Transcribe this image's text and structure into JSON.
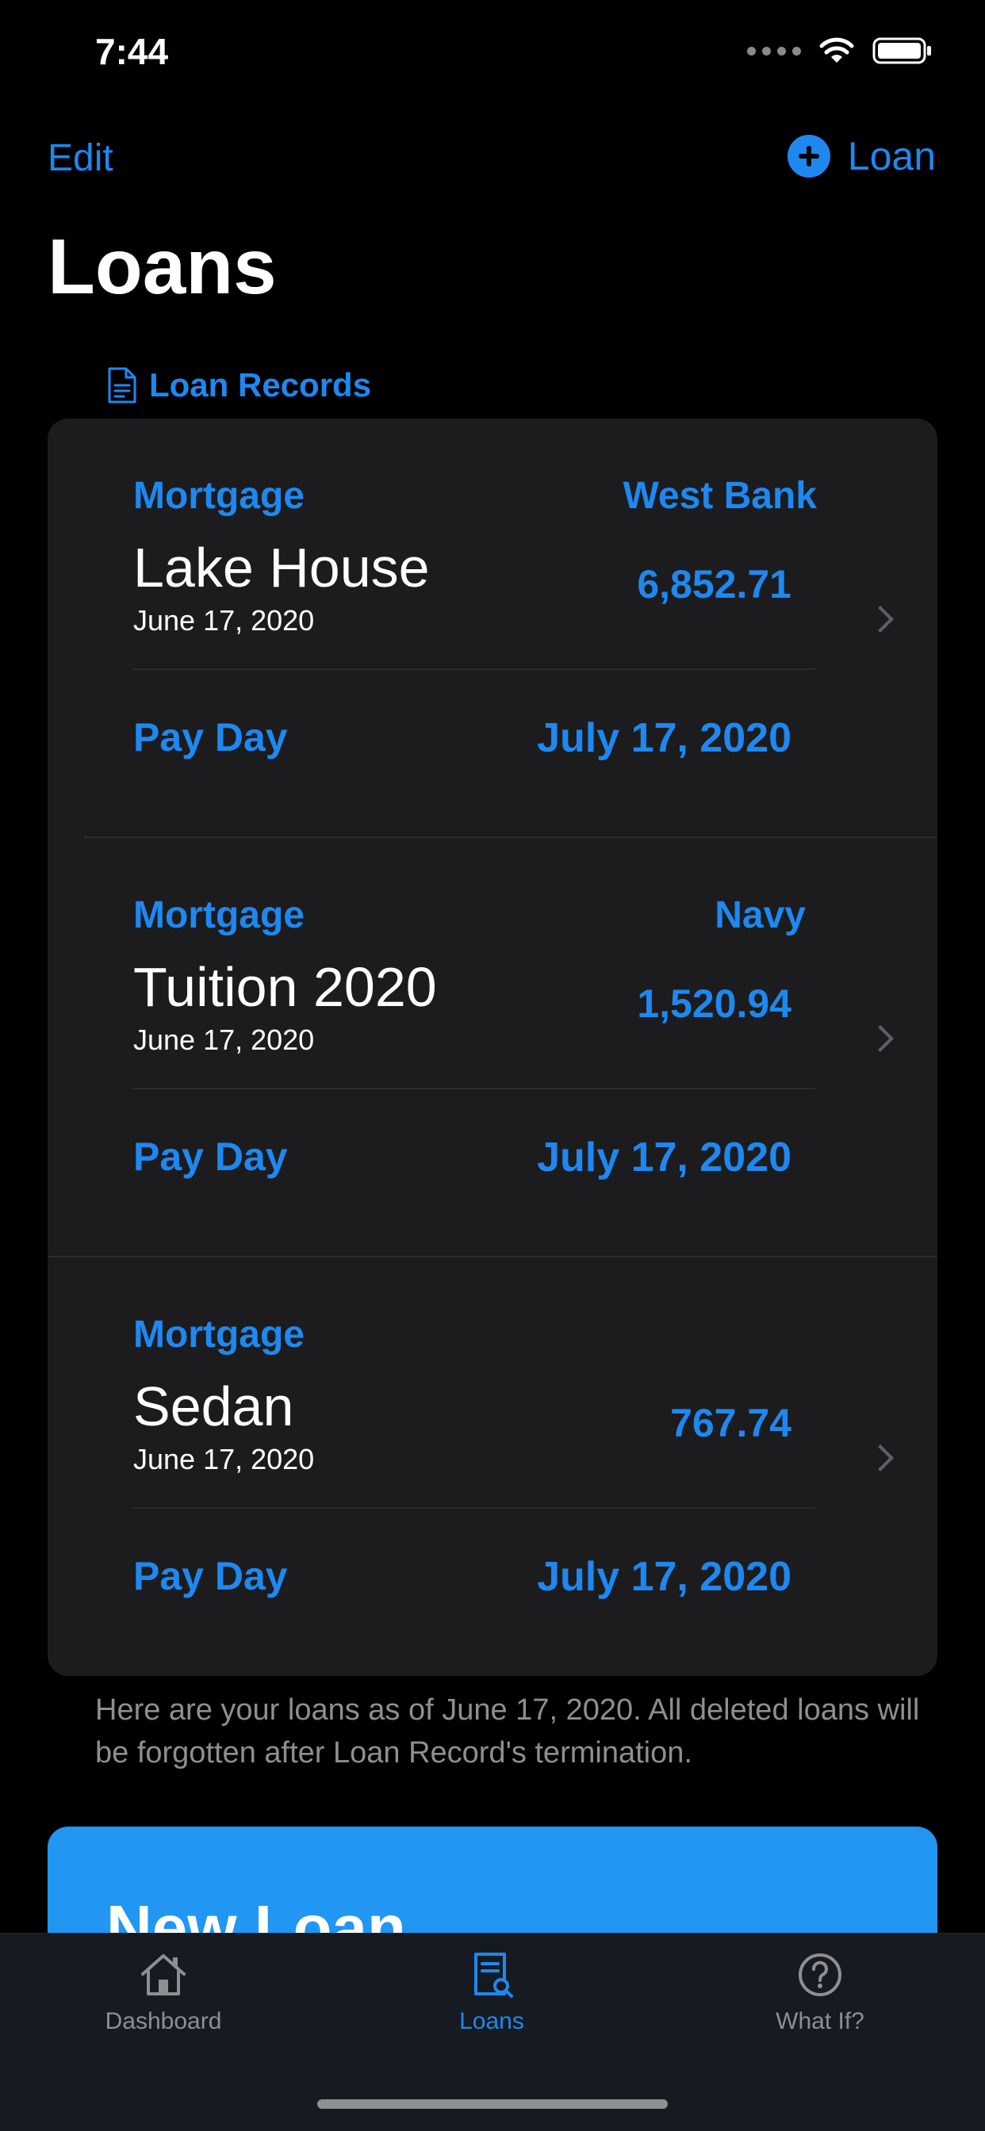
{
  "status_bar": {
    "time": "7:44"
  },
  "nav": {
    "edit_label": "Edit",
    "add_label": "Loan"
  },
  "page_title": "Loans",
  "section_header": {
    "label": "Loan Records",
    "icon": "document-icon"
  },
  "loans": [
    {
      "type": "Mortgage",
      "lender": "West Bank",
      "name": "Lake House",
      "date": "June 17, 2020",
      "amount": "6,852.71",
      "payday_label": "Pay Day",
      "payday_date": "July 17, 2020"
    },
    {
      "type": "Mortgage",
      "lender": "Navy",
      "name": "Tuition 2020",
      "date": "June 17, 2020",
      "amount": "1,520.94",
      "payday_label": "Pay Day",
      "payday_date": "July 17, 2020"
    },
    {
      "type": "Mortgage",
      "lender": "",
      "name": "Sedan",
      "date": "June 17, 2020",
      "amount": "767.74",
      "payday_label": "Pay Day",
      "payday_date": "July 17, 2020"
    }
  ],
  "footnote": "Here are your loans as of June 17, 2020. All deleted loans will be forgotten after Loan Record's termination.",
  "new_loan_button": {
    "label": "New Loan"
  },
  "tabs": [
    {
      "label": "Dashboard",
      "icon": "house-icon",
      "active": false
    },
    {
      "label": "Loans",
      "icon": "document-search-icon",
      "active": true
    },
    {
      "label": "What If?",
      "icon": "question-circle-icon",
      "active": false
    }
  ],
  "colors": {
    "accent": "#1e88f0",
    "card": "#1c1c1e",
    "button": "#2196f3",
    "tabbar": "#161b21"
  }
}
